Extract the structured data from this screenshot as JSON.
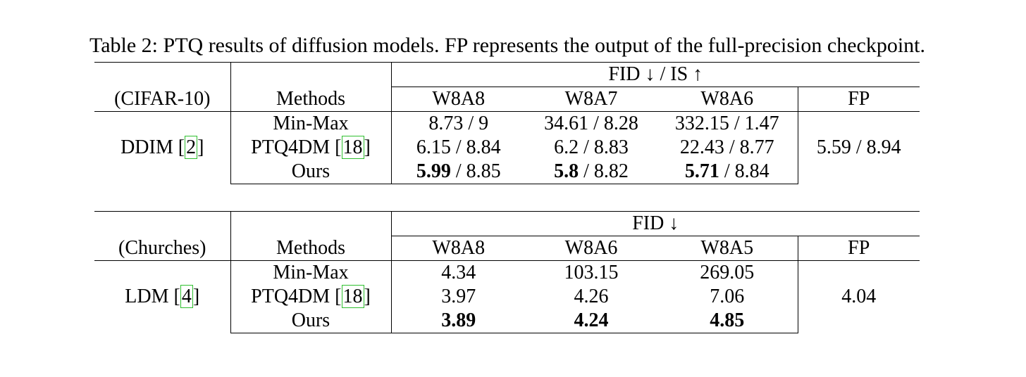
{
  "caption": "Table 2: PTQ results of diffusion models. FP represents the output of the full-precision checkpoint.",
  "tables": [
    {
      "dataset": "(CIFAR-10)",
      "methods_header": "Methods",
      "metric_header": "FID ↓ / IS ↑",
      "columns": [
        "W8A8",
        "W8A7",
        "W8A6"
      ],
      "fp_header": "FP",
      "model": "DDIM",
      "model_cite": "2",
      "fp_value": "5.59 / 8.94",
      "rows": [
        {
          "method": "Min-Max",
          "cite": "",
          "cells": [
            {
              "bold": "",
              "rest": "8.73 / 9"
            },
            {
              "bold": "",
              "rest": "34.61 / 8.28"
            },
            {
              "bold": "",
              "rest": "332.15 / 1.47"
            }
          ]
        },
        {
          "method": "PTQ4DM",
          "cite": "18",
          "cells": [
            {
              "bold": "",
              "rest": "6.15 / 8.84"
            },
            {
              "bold": "",
              "rest": "6.2 / 8.83"
            },
            {
              "bold": "",
              "rest": "22.43 / 8.77"
            }
          ]
        },
        {
          "method": "Ours",
          "cite": "",
          "cells": [
            {
              "bold": "5.99",
              "rest": " / 8.85"
            },
            {
              "bold": "5.8",
              "rest": " / 8.82"
            },
            {
              "bold": "5.71",
              "rest": " / 8.84"
            }
          ]
        }
      ]
    },
    {
      "dataset": "(Churches)",
      "methods_header": "Methods",
      "metric_header": "FID ↓",
      "columns": [
        "W8A8",
        "W8A6",
        "W8A5"
      ],
      "fp_header": "FP",
      "model": "LDM",
      "model_cite": "4",
      "fp_value": "4.04",
      "rows": [
        {
          "method": "Min-Max",
          "cite": "",
          "cells": [
            {
              "bold": "",
              "rest": "4.34"
            },
            {
              "bold": "",
              "rest": "103.15"
            },
            {
              "bold": "",
              "rest": "269.05"
            }
          ]
        },
        {
          "method": "PTQ4DM",
          "cite": "18",
          "cells": [
            {
              "bold": "",
              "rest": "3.97"
            },
            {
              "bold": "",
              "rest": "4.26"
            },
            {
              "bold": "",
              "rest": "7.06"
            }
          ]
        },
        {
          "method": "Ours",
          "cite": "",
          "cells": [
            {
              "bold": "3.89",
              "rest": ""
            },
            {
              "bold": "4.24",
              "rest": ""
            },
            {
              "bold": "4.85",
              "rest": ""
            }
          ]
        }
      ]
    }
  ]
}
